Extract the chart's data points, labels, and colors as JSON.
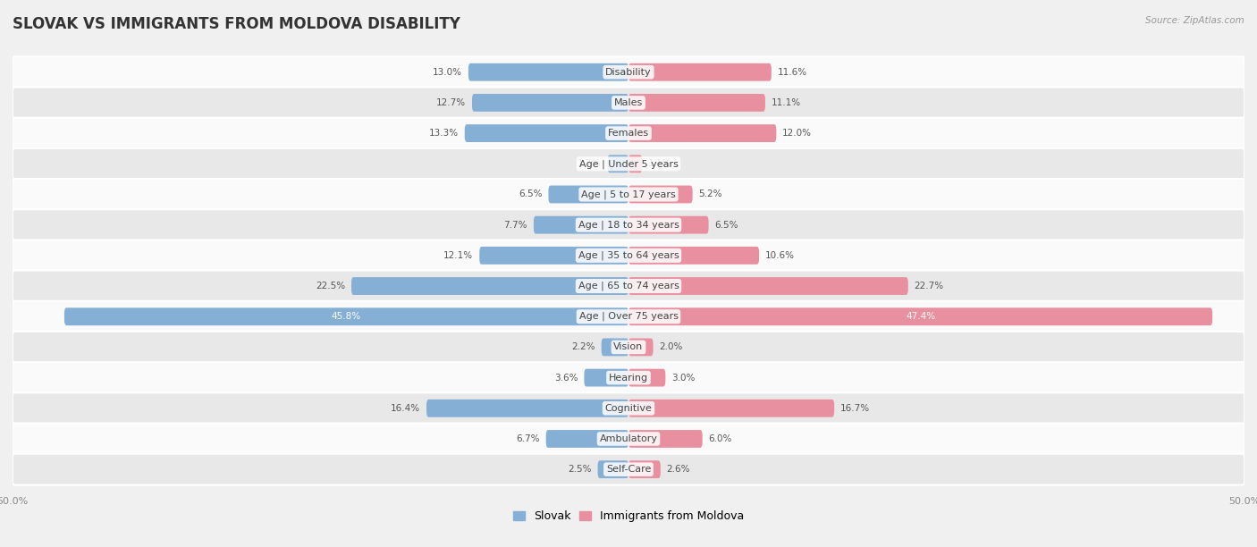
{
  "title": "Slovak vs Immigrants from Moldova Disability",
  "source": "Source: ZipAtlas.com",
  "categories": [
    "Disability",
    "Males",
    "Females",
    "Age | Under 5 years",
    "Age | 5 to 17 years",
    "Age | 18 to 34 years",
    "Age | 35 to 64 years",
    "Age | 65 to 74 years",
    "Age | Over 75 years",
    "Vision",
    "Hearing",
    "Cognitive",
    "Ambulatory",
    "Self-Care"
  ],
  "slovak": [
    13.0,
    12.7,
    13.3,
    1.7,
    6.5,
    7.7,
    12.1,
    22.5,
    45.8,
    2.2,
    3.6,
    16.4,
    6.7,
    2.5
  ],
  "moldova": [
    11.6,
    11.1,
    12.0,
    1.1,
    5.2,
    6.5,
    10.6,
    22.7,
    47.4,
    2.0,
    3.0,
    16.7,
    6.0,
    2.6
  ],
  "slovak_color": "#85afd4",
  "moldova_color": "#e8909f",
  "slovak_label": "Slovak",
  "moldova_label": "Immigrants from Moldova",
  "max_val": 50.0,
  "bar_height": 0.58,
  "bg_color": "#f0f0f0",
  "row_bg_light": "#fafafa",
  "row_bg_dark": "#e8e8e8",
  "title_fontsize": 12,
  "label_fontsize": 8,
  "value_fontsize": 7.5,
  "axis_label_fontsize": 8
}
